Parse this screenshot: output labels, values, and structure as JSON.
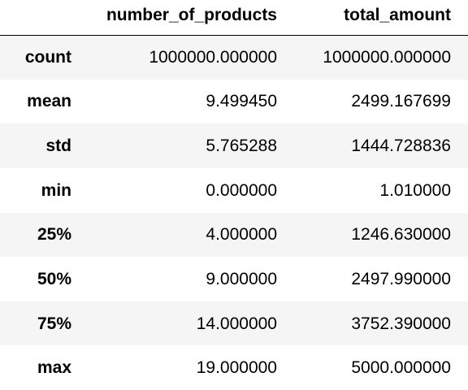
{
  "table": {
    "index_header": "",
    "columns": [
      "number_of_products",
      "total_amount"
    ],
    "rows": [
      {
        "label": "count",
        "values": [
          "1000000.000000",
          "1000000.000000"
        ]
      },
      {
        "label": "mean",
        "values": [
          "9.499450",
          "2499.167699"
        ]
      },
      {
        "label": "std",
        "values": [
          "5.765288",
          "1444.728836"
        ]
      },
      {
        "label": "min",
        "values": [
          "0.000000",
          "1.010000"
        ]
      },
      {
        "label": "25%",
        "values": [
          "4.000000",
          "1246.630000"
        ]
      },
      {
        "label": "50%",
        "values": [
          "9.000000",
          "2497.990000"
        ]
      },
      {
        "label": "75%",
        "values": [
          "14.000000",
          "3752.390000"
        ]
      },
      {
        "label": "max",
        "values": [
          "19.000000",
          "5000.000000"
        ]
      }
    ]
  },
  "colors": {
    "stripe": "#f5f5f5",
    "background": "#ffffff",
    "text": "#000000",
    "header_rule": "#000000"
  }
}
